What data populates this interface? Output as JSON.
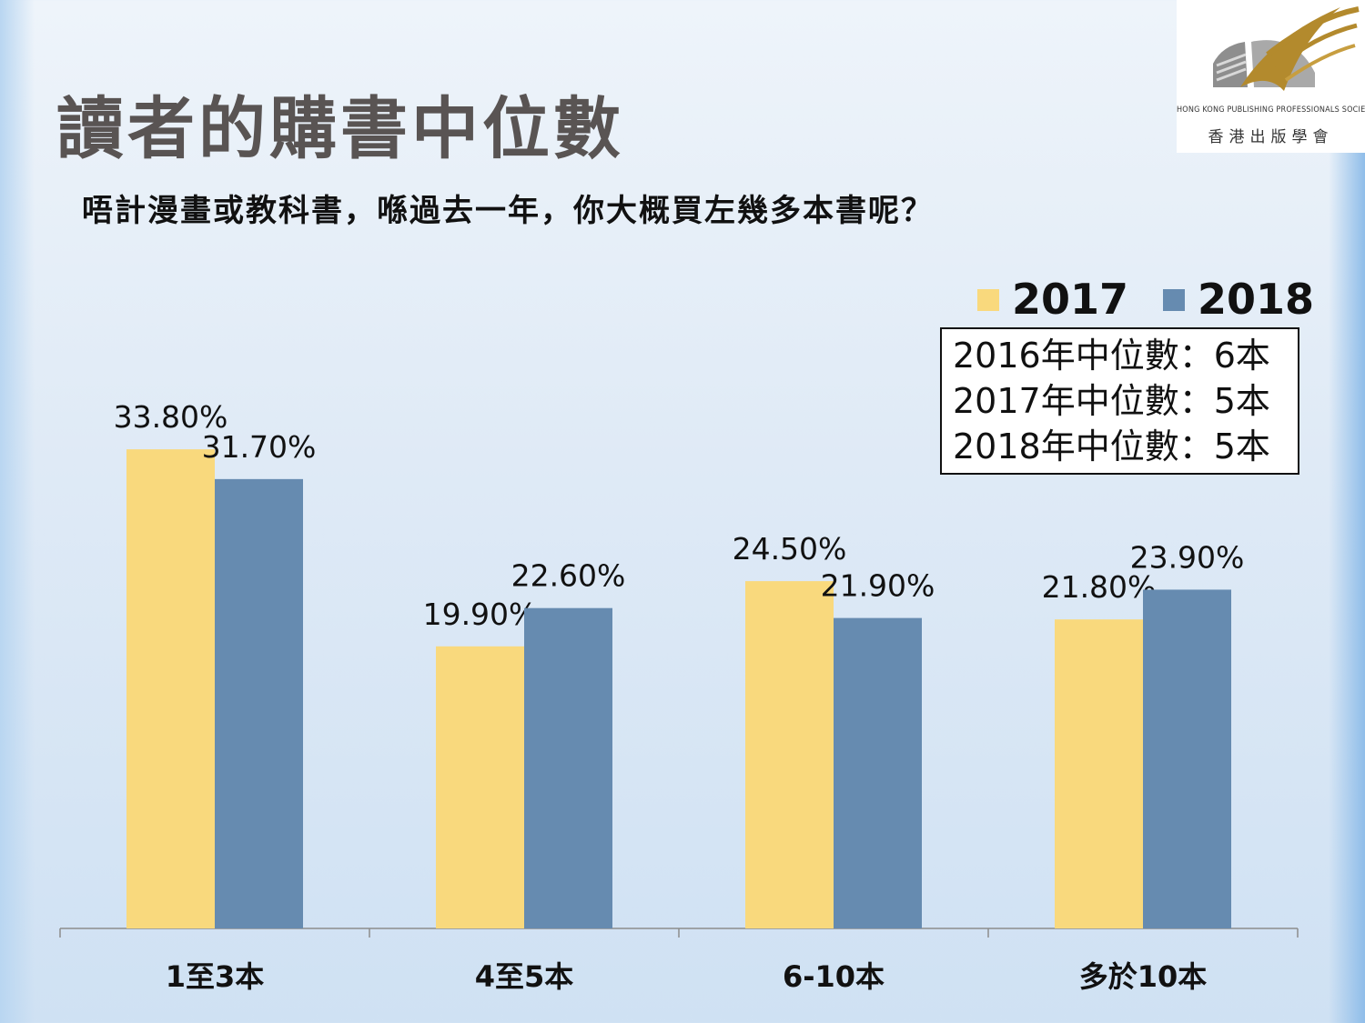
{
  "title": "讀者的購書中位數",
  "subtitle": "唔計漫畫或教科書，喺過去一年，你大概買左幾多本書呢？",
  "logo": {
    "english": "HONG KONG PUBLISHING PROFESSIONALS SOCIETY",
    "chinese": "香港出版學會"
  },
  "median_notes": [
    "2016年中位數：6本",
    "2017年中位數：5本",
    "2018年中位數：5本"
  ],
  "colors": {
    "series_2017": "#f9d97d",
    "series_2018": "#668bb0",
    "axis": "#8c8c8c"
  },
  "chart_data": {
    "type": "bar",
    "categories": [
      "1至3本",
      "4至5本",
      "6-10本",
      "多於10本"
    ],
    "series": [
      {
        "name": "2017",
        "values": [
          33.8,
          19.9,
          24.5,
          21.8
        ],
        "labels": [
          "33.80%",
          "19.90%",
          "24.50%",
          "21.80%"
        ]
      },
      {
        "name": "2018",
        "values": [
          31.7,
          22.6,
          21.9,
          23.9
        ],
        "labels": [
          "31.70%",
          "22.60%",
          "21.90%",
          "23.90%"
        ]
      }
    ],
    "unit": "%",
    "ylim": [
      0,
      34
    ],
    "legend": "top-right",
    "grid": false
  }
}
